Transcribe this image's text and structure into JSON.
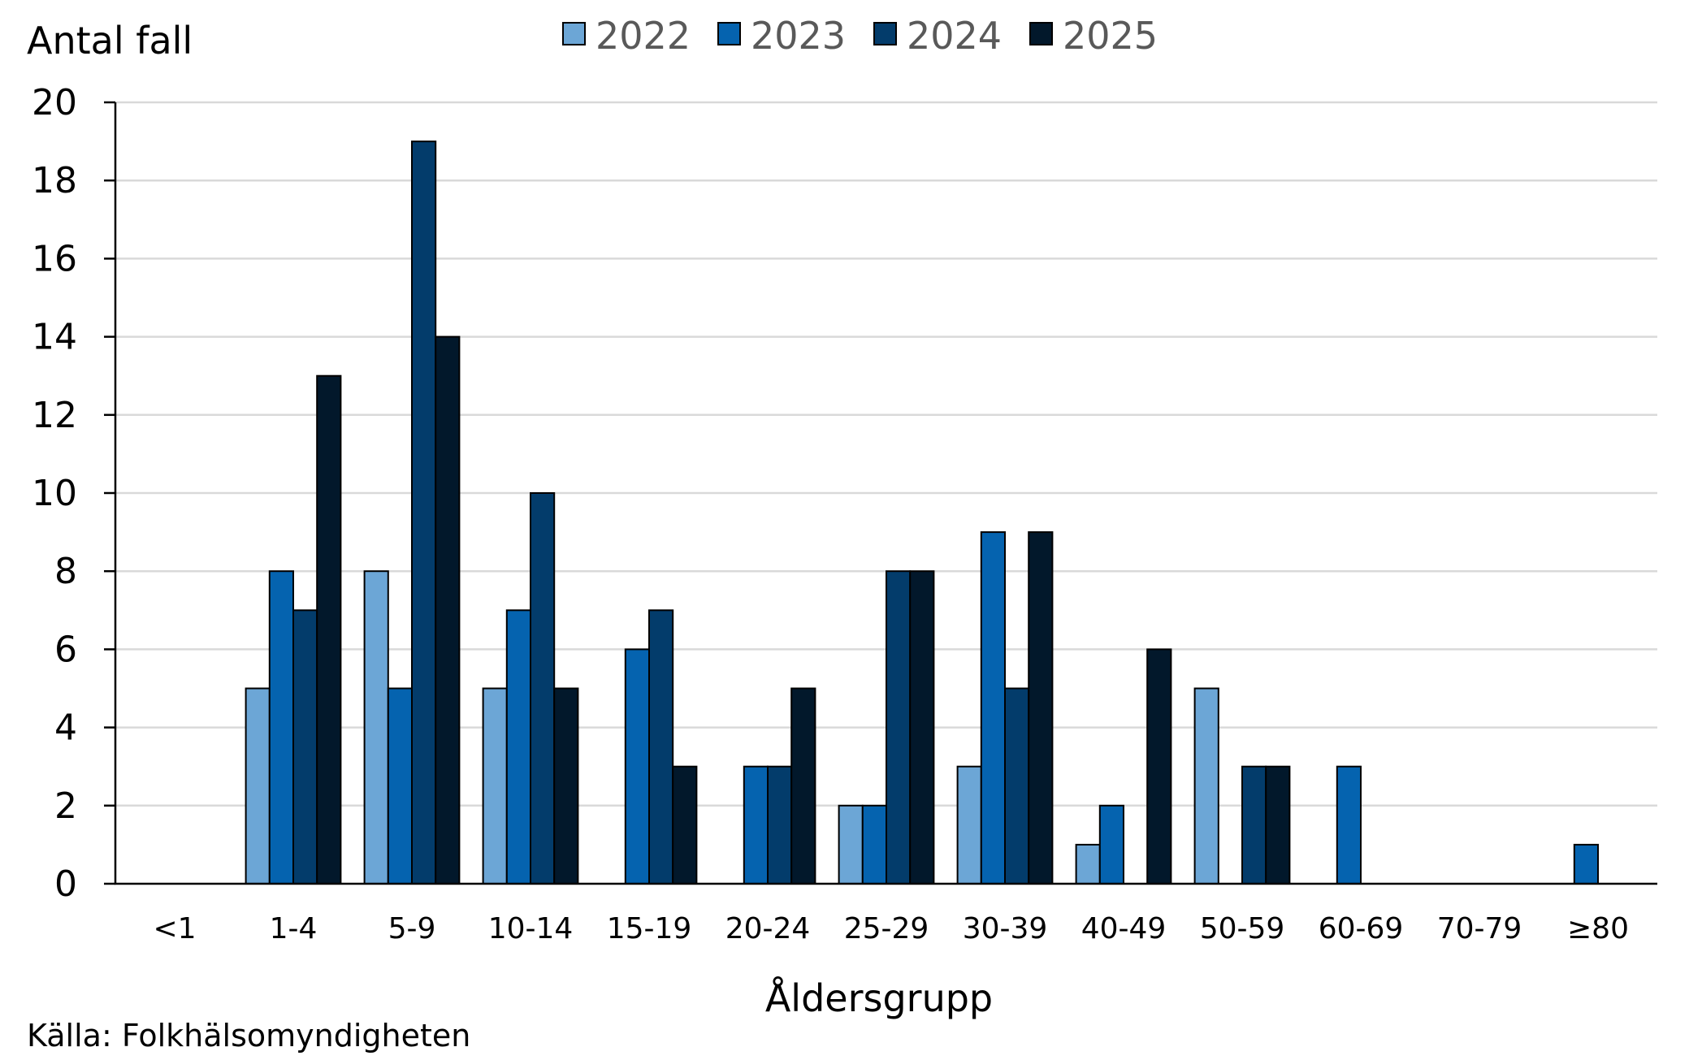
{
  "chart_data": {
    "type": "bar",
    "ylabel": "Antal fall",
    "xlabel": "Åldersgrupp",
    "source": "Källa: Folkhälsomyndigheten",
    "ylim": [
      0,
      20
    ],
    "yticks": [
      0,
      2,
      4,
      6,
      8,
      10,
      12,
      14,
      16,
      18,
      20
    ],
    "grid": true,
    "legend_position": "top",
    "categories": [
      "<1",
      "1-4",
      "5-9",
      "10-14",
      "15-19",
      "20-24",
      "25-29",
      "30-39",
      "40-49",
      "50-59",
      "60-69",
      "70-79",
      "≥80"
    ],
    "series": [
      {
        "name": "2022",
        "color": "#6CA6D6",
        "values": [
          0,
          5,
          8,
          5,
          0,
          0,
          2,
          3,
          1,
          5,
          0,
          0,
          0
        ]
      },
      {
        "name": "2023",
        "color": "#0563AF",
        "values": [
          0,
          8,
          5,
          7,
          6,
          3,
          2,
          9,
          2,
          0,
          3,
          0,
          1
        ]
      },
      {
        "name": "2024",
        "color": "#033C6B",
        "values": [
          0,
          7,
          19,
          10,
          7,
          3,
          8,
          5,
          0,
          3,
          0,
          0,
          0
        ]
      },
      {
        "name": "2025",
        "color": "#02182B",
        "values": [
          0,
          13,
          14,
          5,
          3,
          5,
          8,
          9,
          6,
          3,
          0,
          0,
          0
        ]
      }
    ],
    "colors": {
      "grid": "#D9D9D9",
      "axis": "#000000",
      "bar_outline": "#000000",
      "legend_text": "#595959"
    }
  }
}
